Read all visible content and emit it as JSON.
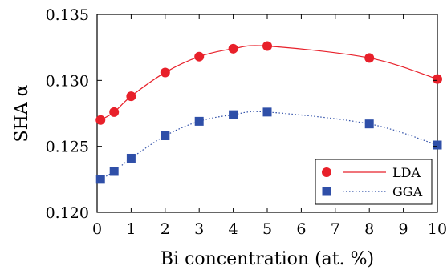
{
  "chart_data": {
    "type": "line",
    "xlabel": "Bi concentration (at. %)",
    "ylabel": "SHA α",
    "xlim": [
      0,
      10
    ],
    "ylim": [
      0.12,
      0.135
    ],
    "x_ticks": [
      "0",
      "1",
      "2",
      "3",
      "4",
      "5",
      "6",
      "7",
      "8",
      "9",
      "10"
    ],
    "y_ticks": [
      "0.120",
      "0.125",
      "0.130",
      "0.135"
    ],
    "grid": false,
    "legend_position": "bottom-right",
    "series": [
      {
        "name": "LDA",
        "color": "#e8202a",
        "marker": "circle",
        "line_style": "solid",
        "x": [
          0.1,
          0.5,
          1,
          2,
          3,
          4,
          5,
          8,
          10
        ],
        "y": [
          0.127,
          0.1276,
          0.1288,
          0.1306,
          0.1318,
          0.1324,
          0.1326,
          0.1317,
          0.1301
        ]
      },
      {
        "name": "GGA",
        "color": "#2f4fa8",
        "marker": "square",
        "line_style": "dotted",
        "x": [
          0.1,
          0.5,
          1,
          2,
          3,
          4,
          5,
          8,
          10
        ],
        "y": [
          0.1225,
          0.1231,
          0.1241,
          0.1258,
          0.1269,
          0.1274,
          0.1276,
          0.1267,
          0.1251
        ]
      }
    ]
  }
}
